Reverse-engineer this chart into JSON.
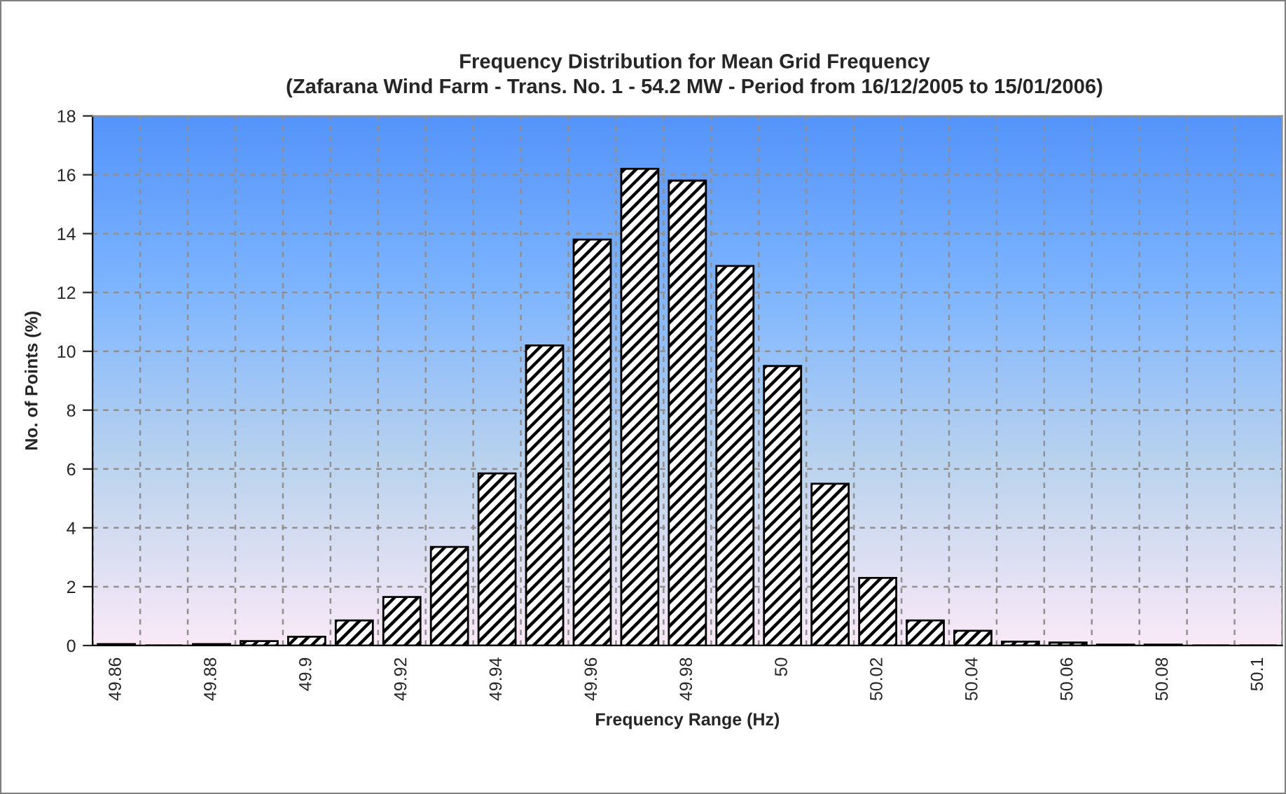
{
  "chart_data": {
    "type": "bar",
    "title": "Frequency Distribution for Mean Grid Frequency\n(Zafarana Wind Farm - Trans. No. 1 - 54.2 MW - Period from 16/12/2005 to 15/01/2006)",
    "xlabel": "Frequency Range (Hz)",
    "ylabel": "No. of Points (%)",
    "categories": [
      "49.86",
      null,
      "49.88",
      null,
      "49.9",
      null,
      "49.92",
      null,
      "49.94",
      null,
      "49.96",
      null,
      "49.98",
      null,
      "50",
      null,
      "50.02",
      null,
      "50.04",
      null,
      "50.06",
      null,
      "50.08",
      null,
      "50.1"
    ],
    "values": [
      0.05,
      0,
      0.05,
      0.15,
      0.3,
      0.85,
      1.65,
      3.35,
      5.85,
      10.2,
      13.8,
      16.2,
      15.8,
      12.9,
      9.5,
      5.5,
      2.3,
      0.85,
      0.5,
      0.13,
      0.1,
      0.03,
      0.03,
      0,
      0
    ],
    "color": "#000000",
    "ylim": [
      0,
      18
    ],
    "yticks": [
      0,
      2,
      4,
      6,
      8,
      10,
      12,
      14,
      16,
      18
    ],
    "grid": true,
    "line_style": "dashed"
  }
}
